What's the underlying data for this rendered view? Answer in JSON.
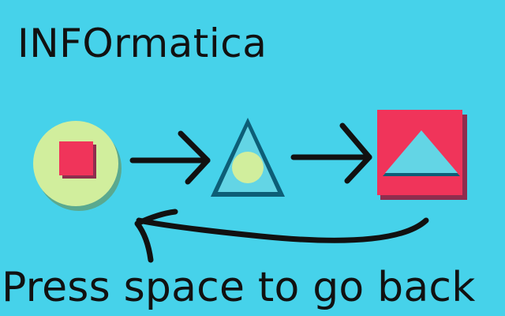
{
  "game": {
    "title": "INFOrmatica",
    "instruction": "Press space to go back"
  },
  "sequence": {
    "stages": [
      {
        "name": "circle-stage",
        "icon": "circle-with-square-icon"
      },
      {
        "name": "triangle-stage",
        "icon": "triangle-with-circle-icon"
      },
      {
        "name": "square-stage",
        "icon": "square-with-triangle-icon"
      }
    ],
    "arrows": [
      "right-arrow-icon",
      "right-arrow-icon",
      "return-arrow-icon"
    ]
  },
  "colors": {
    "background": "#46D2EA",
    "ink": "#111111",
    "red": "#F0345A",
    "light_green": "#D1EE9D",
    "light_blue": "#63D5E5",
    "dark_blue": "#0D5E77",
    "shadow_green": "#5AA98F",
    "shadow_red": "#8F2D4E"
  }
}
